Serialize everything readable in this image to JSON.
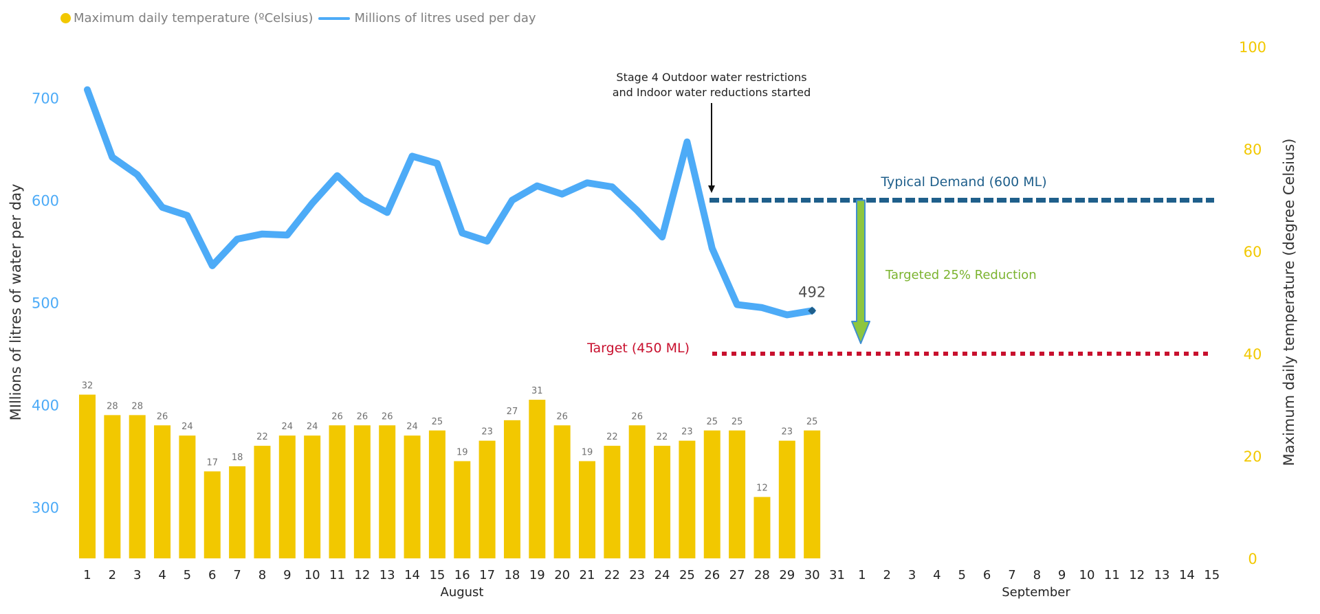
{
  "colors": {
    "bar": "#F2C800",
    "line": "#4DABF7",
    "left_axis": "#4DABF7",
    "right_axis": "#F2C800",
    "typical": "#1F5F8B",
    "target": "#C8102E",
    "reduction_fill": "#8DC63F",
    "reduction_text": "#7BB32E",
    "bar_label": "#707070",
    "end_label": "#505050"
  },
  "chart_data": {
    "type": "bar+line",
    "legend": {
      "bar_label": "Maximum daily temperature (ºCelsius)",
      "line_label": "Millions of litres used per day"
    },
    "y_left": {
      "label": "MIllions of litres of water per day",
      "min": 250,
      "max": 750,
      "ticks": [
        300,
        400,
        500,
        600,
        700
      ]
    },
    "y_right": {
      "label": "Maximum daily temperature (degree Celsius)",
      "min": 0,
      "max": 100,
      "ticks": [
        0,
        20,
        40,
        60,
        80,
        100
      ]
    },
    "x_categories": [
      "1",
      "2",
      "3",
      "4",
      "5",
      "6",
      "7",
      "8",
      "9",
      "10",
      "11",
      "12",
      "13",
      "14",
      "15",
      "16",
      "17",
      "18",
      "19",
      "20",
      "21",
      "22",
      "23",
      "24",
      "25",
      "26",
      "27",
      "28",
      "29",
      "30",
      "31",
      "1",
      "2",
      "3",
      "4",
      "5",
      "6",
      "7",
      "8",
      "9",
      "10",
      "11",
      "12",
      "13",
      "14",
      "15"
    ],
    "month_labels": [
      "August",
      "September"
    ],
    "temperature_series": {
      "name": "Maximum daily temperature (ºCelsius)",
      "values": [
        32,
        28,
        28,
        26,
        24,
        17,
        18,
        22,
        24,
        24,
        26,
        26,
        26,
        24,
        25,
        19,
        23,
        27,
        31,
        26,
        19,
        22,
        26,
        22,
        23,
        25,
        25,
        12,
        23,
        25
      ]
    },
    "water_series": {
      "name": "Millions of litres used per day",
      "values": [
        708,
        642,
        625,
        593,
        585,
        536,
        562,
        567,
        566,
        597,
        624,
        601,
        588,
        643,
        636,
        568,
        560,
        600,
        614,
        606,
        617,
        613,
        590,
        564,
        657,
        553,
        498,
        495,
        488,
        492
      ]
    },
    "typical_demand": {
      "value": 600,
      "label": "Typical Demand (600 ML)"
    },
    "target": {
      "value": 450,
      "label": "Target (450 ML)"
    },
    "reduction_label": "Targeted 25% Reduction",
    "annotation": {
      "line1": "Stage 4 Outdoor water restrictions",
      "line2": "and Indoor water reductions started"
    },
    "end_value_label": "492"
  }
}
